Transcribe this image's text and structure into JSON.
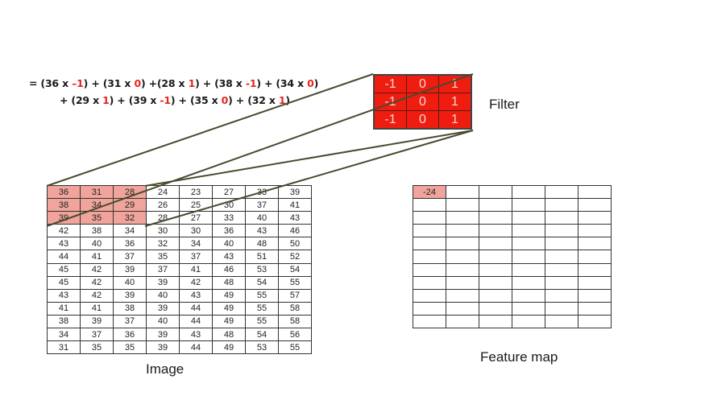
{
  "formula": {
    "line1": [
      {
        "t": "= (36 x ",
        "c": "k"
      },
      {
        "t": "–1",
        "c": "w"
      },
      {
        "t": ") + (31 x ",
        "c": "k"
      },
      {
        "t": "0",
        "c": "w"
      },
      {
        "t": ") +(28 x ",
        "c": "k"
      },
      {
        "t": "1",
        "c": "w"
      },
      {
        "t": ") + (38 x ",
        "c": "k"
      },
      {
        "t": "-1",
        "c": "w"
      },
      {
        "t": ") + (34 x ",
        "c": "k"
      },
      {
        "t": "0",
        "c": "w"
      },
      {
        "t": ")",
        "c": "k"
      }
    ],
    "line2": [
      {
        "t": "+ (29 x ",
        "c": "k"
      },
      {
        "t": "1",
        "c": "w"
      },
      {
        "t": ") + (39 x ",
        "c": "k"
      },
      {
        "t": "-1",
        "c": "w"
      },
      {
        "t": ") + (35 x ",
        "c": "k"
      },
      {
        "t": "0",
        "c": "w"
      },
      {
        "t": ") + (32 x ",
        "c": "k"
      },
      {
        "t": "1",
        "c": "w"
      },
      {
        "t": ")",
        "c": "k"
      }
    ]
  },
  "filter": {
    "label": "Filter",
    "rows": [
      [
        "-1",
        "0",
        "1"
      ],
      [
        "-1",
        "0",
        "1"
      ],
      [
        "-1",
        "0",
        "1"
      ]
    ]
  },
  "image": {
    "label": "Image",
    "rows": [
      [
        "36",
        "31",
        "28",
        "24",
        "23",
        "27",
        "33",
        "39"
      ],
      [
        "38",
        "34",
        "29",
        "26",
        "25",
        "30",
        "37",
        "41"
      ],
      [
        "39",
        "35",
        "32",
        "28",
        "27",
        "33",
        "40",
        "43"
      ],
      [
        "42",
        "38",
        "34",
        "30",
        "30",
        "36",
        "43",
        "46"
      ],
      [
        "43",
        "40",
        "36",
        "32",
        "34",
        "40",
        "48",
        "50"
      ],
      [
        "44",
        "41",
        "37",
        "35",
        "37",
        "43",
        "51",
        "52"
      ],
      [
        "45",
        "42",
        "39",
        "37",
        "41",
        "46",
        "53",
        "54"
      ],
      [
        "45",
        "42",
        "40",
        "39",
        "42",
        "48",
        "54",
        "55"
      ],
      [
        "43",
        "42",
        "39",
        "40",
        "43",
        "49",
        "55",
        "57"
      ],
      [
        "41",
        "41",
        "38",
        "39",
        "44",
        "49",
        "55",
        "58"
      ],
      [
        "38",
        "39",
        "37",
        "40",
        "44",
        "49",
        "55",
        "58"
      ],
      [
        "34",
        "37",
        "36",
        "39",
        "43",
        "48",
        "54",
        "56"
      ],
      [
        "31",
        "35",
        "35",
        "39",
        "44",
        "49",
        "53",
        "55"
      ]
    ]
  },
  "feature_map": {
    "label": "Feature map",
    "first_value": "-24",
    "rows": 11,
    "cols": 6
  },
  "colors": {
    "filter_fill": "#ee1d10",
    "highlight": "#f0a49c",
    "weight_text": "#e8241c",
    "connector_line": "#4a4a30"
  }
}
